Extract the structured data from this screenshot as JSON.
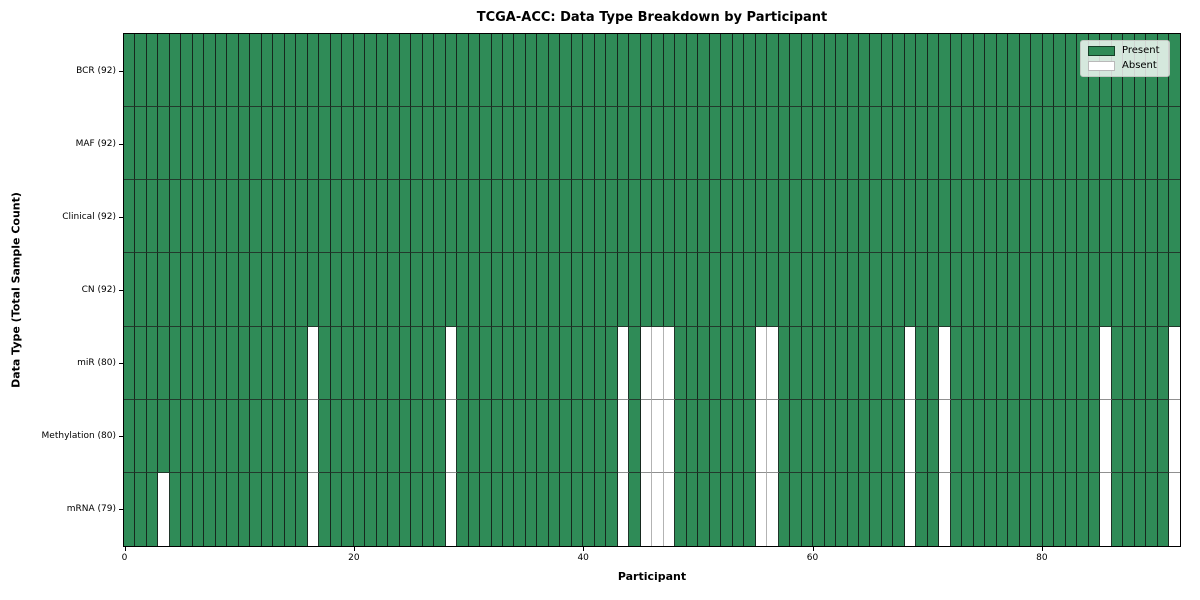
{
  "title": "TCGA-ACC: Data Type Breakdown by Participant",
  "colors": {
    "present": "#2f8b57",
    "absent": "#ffffff",
    "figure_background": "#ffffff",
    "legend_background": "rgba(255,255,255,0.8)"
  },
  "legend": {
    "present_label": "Present",
    "absent_label": "Absent",
    "position": "upper right"
  },
  "chart_data": {
    "type": "heatmap",
    "title": "TCGA-ACC: Data Type Breakdown by Participant",
    "xlabel": "Participant",
    "ylabel": "Data Type (Total Sample Count)",
    "n_participants": 92,
    "x_range": [
      0,
      92
    ],
    "x_ticks": [
      0,
      20,
      40,
      60,
      80
    ],
    "grid": false,
    "legend_entries": [
      "Present",
      "Absent"
    ],
    "legend_position": "upper right",
    "rows": [
      {
        "label": "BCR (92)",
        "total_present": 92,
        "absent_participants": []
      },
      {
        "label": "MAF (92)",
        "total_present": 92,
        "absent_participants": []
      },
      {
        "label": "Clinical (92)",
        "total_present": 92,
        "absent_participants": []
      },
      {
        "label": "CN (92)",
        "total_present": 92,
        "absent_participants": []
      },
      {
        "label": "miR (80)",
        "total_present": 80,
        "absent_participants": [
          16,
          28,
          43,
          45,
          46,
          47,
          55,
          56,
          68,
          71,
          85,
          91
        ]
      },
      {
        "label": "Methylation (80)",
        "total_present": 80,
        "absent_participants": [
          16,
          28,
          43,
          45,
          46,
          47,
          55,
          56,
          68,
          71,
          85,
          91
        ]
      },
      {
        "label": "mRNA (79)",
        "total_present": 79,
        "absent_participants": [
          3,
          16,
          28,
          43,
          45,
          46,
          47,
          55,
          56,
          68,
          71,
          85,
          91
        ]
      }
    ]
  }
}
